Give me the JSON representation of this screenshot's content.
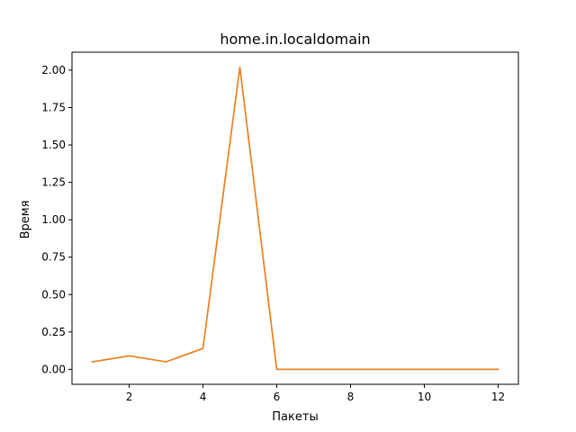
{
  "chart_data": {
    "type": "line",
    "title": "home.in.localdomain",
    "xlabel": "Пакеты",
    "ylabel": "Время",
    "xlim": [
      0.45,
      12.55
    ],
    "ylim": [
      -0.1,
      2.12
    ],
    "xticks": [
      2,
      4,
      6,
      8,
      10,
      12
    ],
    "yticks": [
      0.0,
      0.25,
      0.5,
      0.75,
      1.0,
      1.25,
      1.5,
      1.75,
      2.0
    ],
    "ytick_labels": [
      "0.00",
      "0.25",
      "0.50",
      "0.75",
      "1.00",
      "1.25",
      "1.50",
      "1.75",
      "2.00"
    ],
    "grid": false,
    "x": [
      1,
      2,
      3,
      4,
      5,
      6,
      7,
      8,
      9,
      10,
      11,
      12
    ],
    "series": [
      {
        "color": "#1f77b4",
        "values": [
          0.05,
          0.09,
          0.05,
          0.14,
          2.02,
          0.0,
          0.0,
          0.0,
          0.0,
          0.0,
          0.0,
          0.0
        ]
      },
      {
        "color": "#ff7f0e",
        "values": [
          0.05,
          0.09,
          0.05,
          0.14,
          2.02,
          0.0,
          0.0,
          0.0,
          0.0,
          0.0,
          0.0,
          0.0
        ]
      }
    ]
  }
}
